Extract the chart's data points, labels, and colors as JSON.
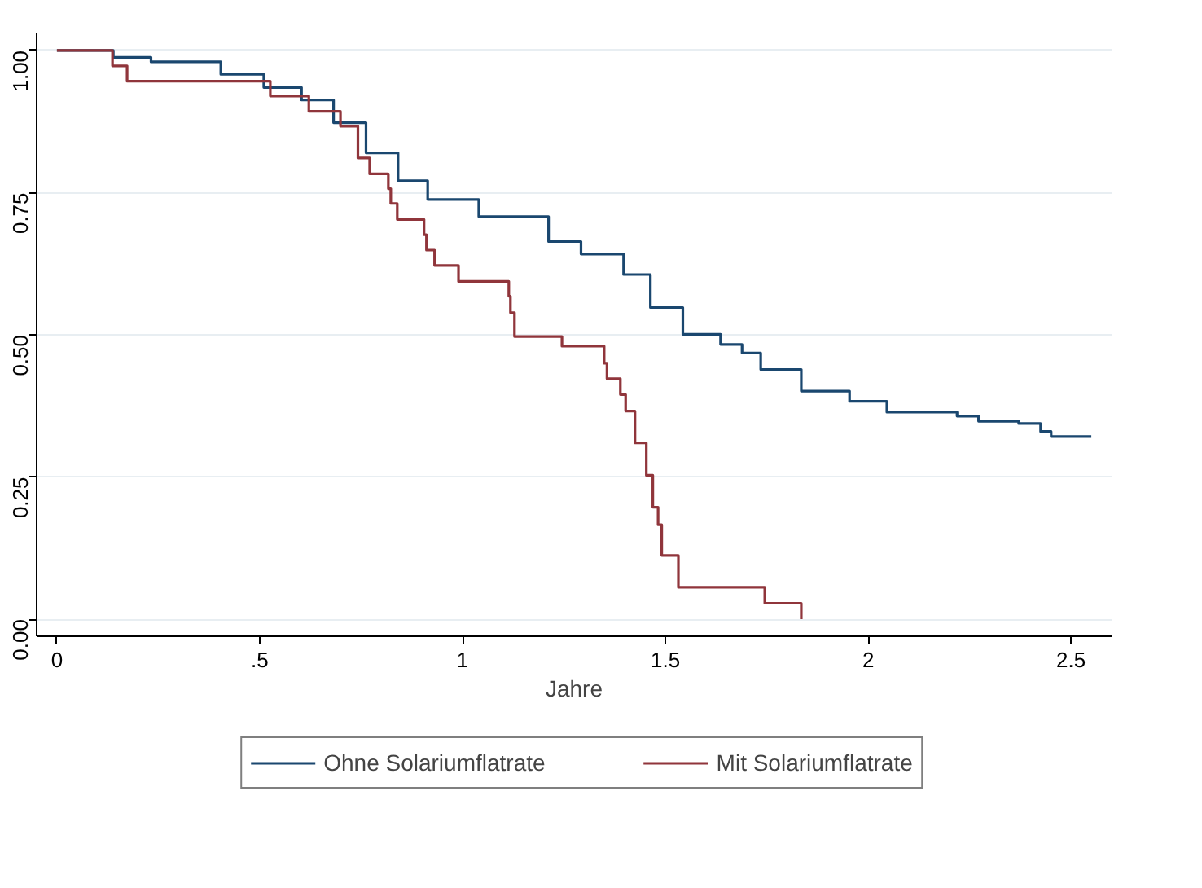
{
  "chart_data": {
    "type": "step",
    "xlabel": "Jahre",
    "xlim": [
      -0.05,
      2.6
    ],
    "ylim": [
      -0.03,
      1.03
    ],
    "xticks": [
      0,
      {
        "value": 0.5,
        "label": ".5"
      },
      1,
      1.5,
      2,
      2.5
    ],
    "yticks": [
      {
        "value": 0,
        "label": "0.00"
      },
      {
        "value": 0.25,
        "label": "0.25"
      },
      {
        "value": 0.5,
        "label": "0.50"
      },
      {
        "value": 0.75,
        "label": "0.75"
      },
      {
        "value": 1,
        "label": "1.00"
      }
    ],
    "grid": "y",
    "legend": "bottom",
    "line_style": "solid",
    "series": [
      {
        "name": "Ohne Solariumflatrate",
        "color": "#1a476f",
        "x": [
          0,
          0.139,
          0.232,
          0.404,
          0.51,
          0.603,
          0.682,
          0.762,
          0.841,
          0.914,
          1.04,
          1.212,
          1.292,
          1.397,
          1.463,
          1.543,
          1.636,
          1.689,
          1.735,
          1.835,
          1.954,
          2.046,
          2.219,
          2.272,
          2.371,
          2.425,
          2.451,
          2.55
        ],
        "values": [
          1.0,
          0.988,
          0.98,
          0.958,
          0.935,
          0.913,
          0.873,
          0.82,
          0.771,
          0.738,
          0.708,
          0.664,
          0.642,
          0.606,
          0.548,
          0.501,
          0.483,
          0.468,
          0.439,
          0.401,
          0.383,
          0.364,
          0.357,
          0.348,
          0.344,
          0.33,
          0.321,
          0.321
        ]
      },
      {
        "name": "Mit Solariumflatrate",
        "color": "#90353b",
        "x": [
          0,
          0.137,
          0.173,
          0.526,
          0.621,
          0.699,
          0.742,
          0.771,
          0.817,
          0.823,
          0.839,
          0.905,
          0.911,
          0.931,
          0.99,
          1.114,
          1.118,
          1.128,
          1.245,
          1.349,
          1.356,
          1.389,
          1.402,
          1.425,
          1.453,
          1.469,
          1.482,
          1.491,
          1.532,
          1.745,
          1.835
        ],
        "values": [
          1.0,
          0.973,
          0.946,
          0.92,
          0.893,
          0.867,
          0.811,
          0.783,
          0.757,
          0.731,
          0.703,
          0.676,
          0.649,
          0.622,
          0.594,
          0.568,
          0.539,
          0.497,
          0.48,
          0.45,
          0.423,
          0.395,
          0.366,
          0.31,
          0.253,
          0.197,
          0.166,
          0.112,
          0.056,
          0.028,
          0.0
        ]
      }
    ]
  }
}
